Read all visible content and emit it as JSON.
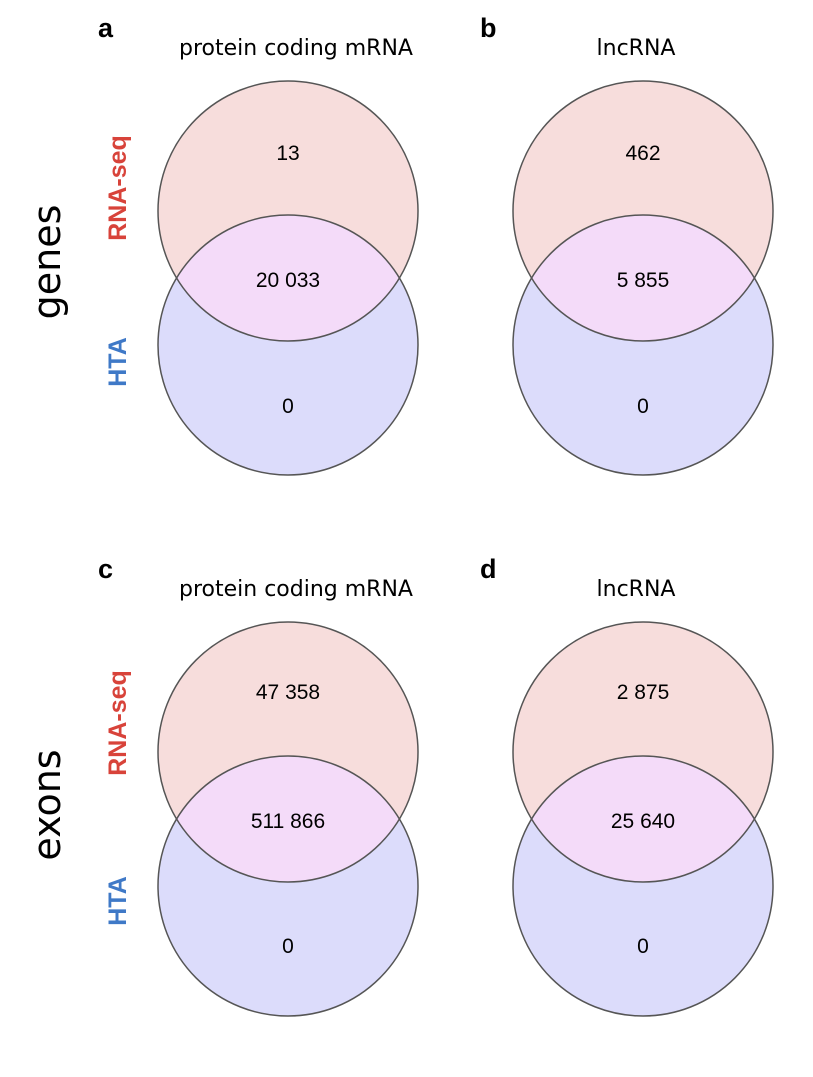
{
  "colors": {
    "rna_seq": "#d8433a",
    "hta": "#3f79c7",
    "rna_seq_fill": "#f7dddc",
    "hta_fill": "#dcdcfb",
    "overlap_fill": "#f4dbf9"
  },
  "rows": [
    {
      "label": "genes",
      "set_top": "RNA-seq",
      "set_bottom": "HTA"
    },
    {
      "label": "exons",
      "set_top": "RNA-seq",
      "set_bottom": "HTA"
    }
  ],
  "panels": [
    {
      "letter": "a",
      "title": "protein coding mRNA",
      "only_top": "13",
      "overlap": "20 033",
      "only_bottom": "0"
    },
    {
      "letter": "b",
      "title": "lncRNA",
      "only_top": "462",
      "overlap": "5 855",
      "only_bottom": "0"
    },
    {
      "letter": "c",
      "title": "protein coding mRNA",
      "only_top": "47 358",
      "overlap": "511 866",
      "only_bottom": "0"
    },
    {
      "letter": "d",
      "title": "lncRNA",
      "only_top": "2 875",
      "overlap": "25 640",
      "only_bottom": "0"
    }
  ]
}
